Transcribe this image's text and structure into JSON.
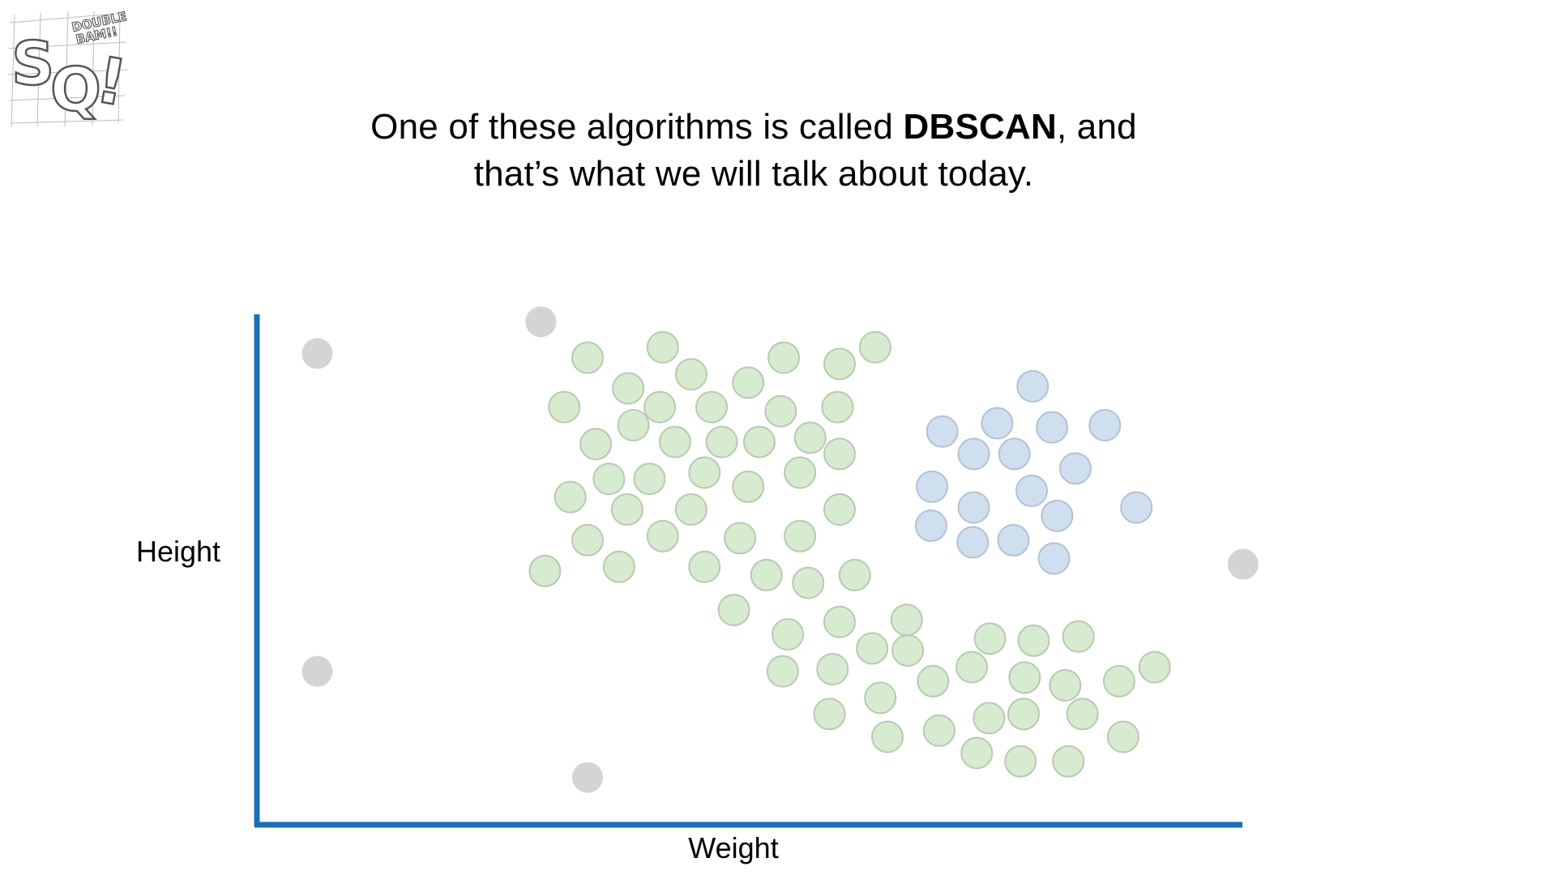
{
  "caption": {
    "line1_before": "One of these algorithms is called ",
    "line1_bold": "DBSCAN",
    "line1_after": ", and",
    "line2": "that’s what we will talk about today."
  },
  "logo": {
    "letters": "SQ!",
    "tagline": "DOUBLE BAM!!"
  },
  "colors": {
    "axis": "#1a6fb5",
    "cluster_green_fill": "#d6ebcf",
    "cluster_green_stroke": "#b9c9b3",
    "cluster_blue_fill": "#cfdff0",
    "cluster_blue_stroke": "#b3c2d2",
    "noise_fill": "#d4d4d4"
  },
  "chart_data": {
    "type": "scatter",
    "xlabel": "Weight",
    "ylabel": "Height",
    "xlim": [
      0,
      100
    ],
    "ylim": [
      0,
      100
    ],
    "grid": false,
    "legend": "none",
    "series": [
      {
        "group": "noise",
        "color": "#d4d4d4",
        "points": [
          [
            5.7,
            90.6
          ],
          [
            27.7,
            96.7
          ],
          [
            5.7,
            29.5
          ],
          [
            32.3,
            9.1
          ],
          [
            96.8,
            50.1
          ]
        ]
      },
      {
        "group": "green-cluster",
        "color": "#d6ebcf",
        "points": [
          [
            32.3,
            89.8
          ],
          [
            39.7,
            91.8
          ],
          [
            51.6,
            89.8
          ],
          [
            57.1,
            88.6
          ],
          [
            60.6,
            91.8
          ],
          [
            42.5,
            86.6
          ],
          [
            48.1,
            85.0
          ],
          [
            36.3,
            83.9
          ],
          [
            39.4,
            80.3
          ],
          [
            30.0,
            80.3
          ],
          [
            44.5,
            80.3
          ],
          [
            51.3,
            79.5
          ],
          [
            56.9,
            80.3
          ],
          [
            36.8,
            76.8
          ],
          [
            33.1,
            73.2
          ],
          [
            40.9,
            73.6
          ],
          [
            45.5,
            73.6
          ],
          [
            49.2,
            73.6
          ],
          [
            54.2,
            74.4
          ],
          [
            57.1,
            71.3
          ],
          [
            34.4,
            66.5
          ],
          [
            38.4,
            66.5
          ],
          [
            43.8,
            67.7
          ],
          [
            48.1,
            65.0
          ],
          [
            53.2,
            67.7
          ],
          [
            30.6,
            63.0
          ],
          [
            36.2,
            60.6
          ],
          [
            42.5,
            60.6
          ],
          [
            57.1,
            60.6
          ],
          [
            32.3,
            54.7
          ],
          [
            39.7,
            55.5
          ],
          [
            47.3,
            55.1
          ],
          [
            53.2,
            55.5
          ],
          [
            28.1,
            48.8
          ],
          [
            35.4,
            49.6
          ],
          [
            43.8,
            49.6
          ],
          [
            49.9,
            48.0
          ],
          [
            54.0,
            46.5
          ],
          [
            58.6,
            48.0
          ],
          [
            46.7,
            41.3
          ],
          [
            52.0,
            36.6
          ],
          [
            57.1,
            39.0
          ],
          [
            63.7,
            39.4
          ],
          [
            60.3,
            33.9
          ],
          [
            63.8,
            33.5
          ],
          [
            51.5,
            29.5
          ],
          [
            56.4,
            29.9
          ],
          [
            61.1,
            24.4
          ],
          [
            56.1,
            21.3
          ],
          [
            61.8,
            16.9
          ],
          [
            66.3,
            27.6
          ],
          [
            71.9,
            35.8
          ],
          [
            76.2,
            35.4
          ],
          [
            80.6,
            36.2
          ],
          [
            70.1,
            30.3
          ],
          [
            75.3,
            28.3
          ],
          [
            79.3,
            26.8
          ],
          [
            84.6,
            27.6
          ],
          [
            88.1,
            30.3
          ],
          [
            71.8,
            20.5
          ],
          [
            66.9,
            18.1
          ],
          [
            75.2,
            21.3
          ],
          [
            81.0,
            21.3
          ],
          [
            70.6,
            13.8
          ],
          [
            74.9,
            12.2
          ],
          [
            79.6,
            12.2
          ],
          [
            85.0,
            16.9
          ]
        ]
      },
      {
        "group": "blue-cluster",
        "color": "#cfdff0",
        "points": [
          [
            76.1,
            84.3
          ],
          [
            72.6,
            77.2
          ],
          [
            67.2,
            75.6
          ],
          [
            78.0,
            76.4
          ],
          [
            83.2,
            76.8
          ],
          [
            70.3,
            71.3
          ],
          [
            74.3,
            71.3
          ],
          [
            80.3,
            68.5
          ],
          [
            66.2,
            65.0
          ],
          [
            76.0,
            64.2
          ],
          [
            70.3,
            61.0
          ],
          [
            86.3,
            61.0
          ],
          [
            78.5,
            59.4
          ],
          [
            66.1,
            57.5
          ],
          [
            70.2,
            54.3
          ],
          [
            74.2,
            54.7
          ],
          [
            78.2,
            51.2
          ]
        ]
      }
    ]
  }
}
